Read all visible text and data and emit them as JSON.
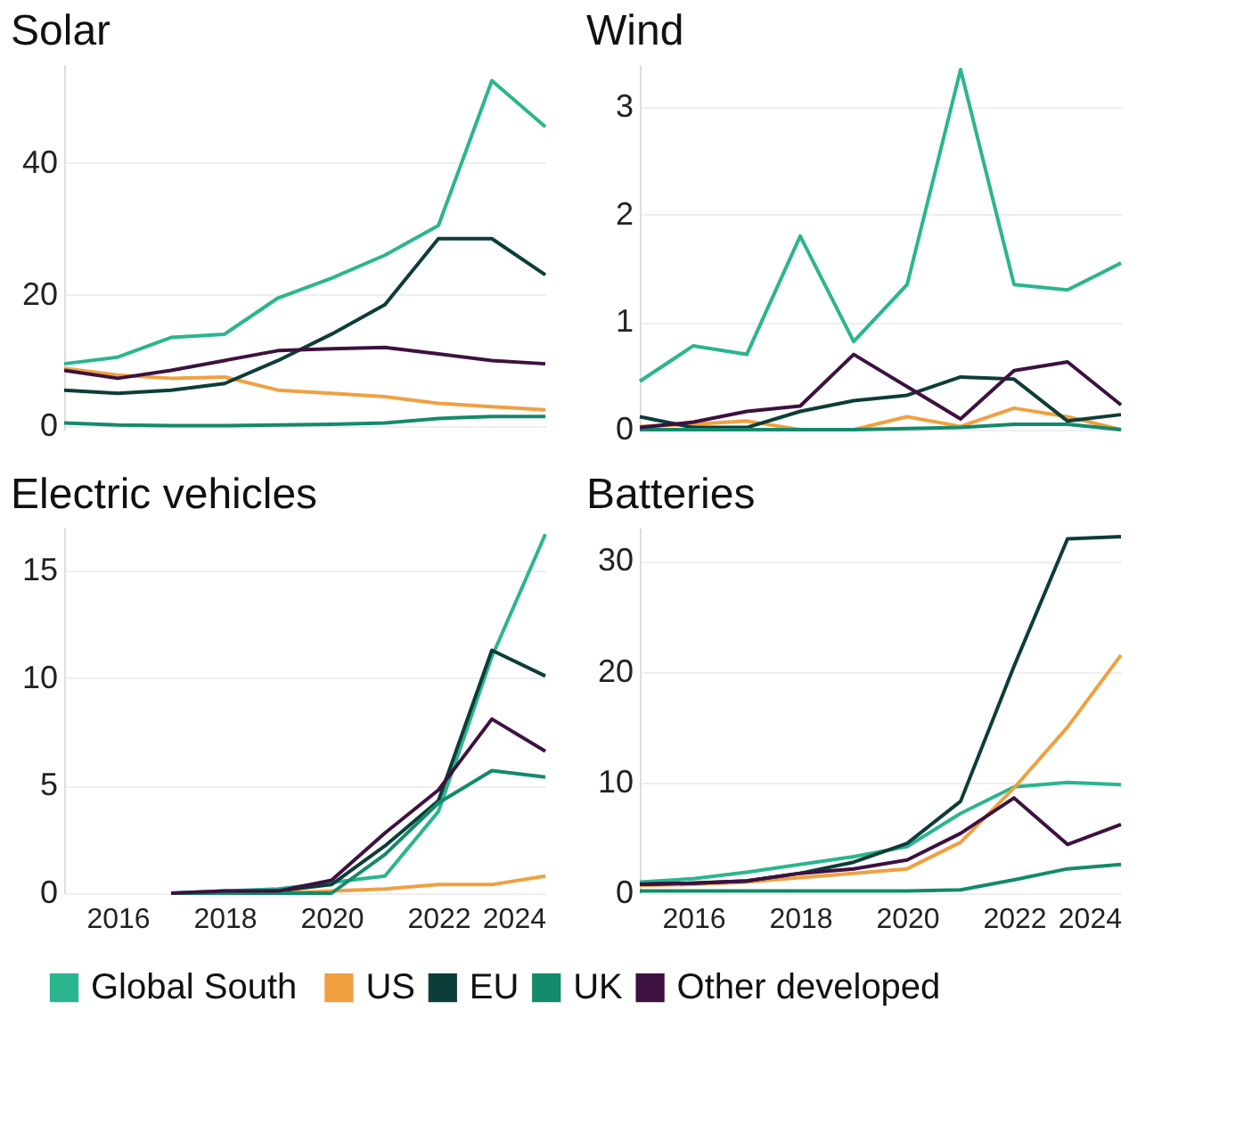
{
  "chart_data": [
    {
      "type": "line",
      "title": "Solar",
      "x": [
        2015,
        2016,
        2017,
        2018,
        2019,
        2020,
        2021,
        2022,
        2023,
        2024
      ],
      "xlim": [
        2015,
        2024
      ],
      "xticks": [
        2016,
        2018,
        2020,
        2022,
        2024
      ],
      "ylim": [
        -0.5,
        55
      ],
      "yticks": [
        0,
        20,
        40
      ],
      "grid": "y",
      "tick_labels": "y",
      "legend": "bottom",
      "series": [
        {
          "name": "Global South",
          "color": "#2bb58e",
          "values": [
            9.5,
            10.5,
            13.5,
            14,
            19.5,
            22.5,
            26,
            30.5,
            52.5,
            45.5
          ]
        },
        {
          "name": "US",
          "color": "#f0a040",
          "values": [
            8.8,
            7.8,
            7.3,
            7.5,
            5.5,
            5,
            4.5,
            3.5,
            3,
            2.5
          ]
        },
        {
          "name": "EU",
          "color": "#0d3d38",
          "values": [
            5.5,
            5,
            5.5,
            6.5,
            10,
            14,
            18.5,
            28.5,
            28.5,
            23
          ]
        },
        {
          "name": "UK",
          "color": "#138a6a",
          "values": [
            0.5,
            0.2,
            0.1,
            0.1,
            0.2,
            0.3,
            0.5,
            1.2,
            1.5,
            1.5
          ]
        },
        {
          "name": "Other developed",
          "color": "#3d1140",
          "values": [
            8.5,
            7.3,
            8.5,
            10,
            11.5,
            11.8,
            12,
            11,
            10,
            9.5
          ]
        }
      ]
    },
    {
      "type": "line",
      "title": "Wind",
      "x": [
        2015,
        2016,
        2017,
        2018,
        2019,
        2020,
        2021,
        2022,
        2023,
        2024
      ],
      "xlim": [
        2015,
        2024
      ],
      "xticks": [
        2016,
        2018,
        2020,
        2022,
        2024
      ],
      "ylim": [
        0,
        3.4
      ],
      "yticks": [
        0,
        1,
        2,
        3
      ],
      "grid": "y",
      "tick_labels": "y",
      "series": [
        {
          "name": "Global South",
          "color": "#2bb58e",
          "values": [
            0.45,
            0.78,
            0.7,
            1.8,
            0.82,
            1.35,
            3.35,
            1.35,
            1.3,
            1.55
          ]
        },
        {
          "name": "US",
          "color": "#f0a040",
          "values": [
            0.03,
            0.05,
            0.08,
            0,
            0,
            0.12,
            0.03,
            0.2,
            0.12,
            0
          ]
        },
        {
          "name": "EU",
          "color": "#0d3d38",
          "values": [
            0.12,
            0.02,
            0.02,
            0.17,
            0.27,
            0.32,
            0.49,
            0.47,
            0.08,
            0.14
          ]
        },
        {
          "name": "UK",
          "color": "#138a6a",
          "values": [
            0,
            0,
            0,
            0,
            0,
            0.01,
            0.02,
            0.05,
            0.05,
            0
          ]
        },
        {
          "name": "Other developed",
          "color": "#3d1140",
          "values": [
            0.02,
            0.07,
            0.17,
            0.22,
            0.7,
            0.4,
            0.1,
            0.55,
            0.63,
            0.23
          ]
        }
      ]
    },
    {
      "type": "line",
      "title": "Electric vehicles",
      "x": [
        2017,
        2018,
        2019,
        2020,
        2021,
        2022,
        2023,
        2024
      ],
      "xlim": [
        2015,
        2024
      ],
      "xticks": [
        2016,
        2018,
        2020,
        2022,
        2024
      ],
      "ylim": [
        0,
        17
      ],
      "yticks": [
        0,
        5,
        10,
        15
      ],
      "grid": "y",
      "series": [
        {
          "name": "Global South",
          "color": "#2bb58e",
          "values": [
            0,
            0.1,
            0.2,
            0.5,
            0.8,
            3.8,
            11,
            16.7
          ]
        },
        {
          "name": "US",
          "color": "#f0a040",
          "values": [
            0,
            0,
            0,
            0.1,
            0.2,
            0.4,
            0.4,
            0.8
          ]
        },
        {
          "name": "EU",
          "color": "#0d3d38",
          "values": [
            0,
            0,
            0.1,
            0.4,
            2.2,
            4.3,
            11.3,
            10.1
          ]
        },
        {
          "name": "UK",
          "color": "#138a6a",
          "values": [
            0,
            0,
            0,
            0,
            1.8,
            4.2,
            5.7,
            5.4
          ]
        },
        {
          "name": "Other developed",
          "color": "#3d1140",
          "values": [
            0,
            0.1,
            0.1,
            0.6,
            2.8,
            4.8,
            8.1,
            6.6
          ]
        }
      ]
    },
    {
      "type": "line",
      "title": "Batteries",
      "x": [
        2015,
        2016,
        2017,
        2018,
        2019,
        2020,
        2021,
        2022,
        2023,
        2024
      ],
      "xlim": [
        2015,
        2024
      ],
      "xticks": [
        2016,
        2018,
        2020,
        2022,
        2024
      ],
      "ylim": [
        0,
        33
      ],
      "yticks": [
        0,
        10,
        20,
        30
      ],
      "grid": "y",
      "series": [
        {
          "name": "Global South",
          "color": "#2bb58e",
          "values": [
            1,
            1.3,
            1.9,
            2.6,
            3.3,
            4.2,
            7.2,
            9.6,
            10,
            9.8
          ]
        },
        {
          "name": "US",
          "color": "#f0a040",
          "values": [
            0.7,
            0.8,
            1,
            1.4,
            1.8,
            2.2,
            4.6,
            9.5,
            15,
            21.5
          ]
        },
        {
          "name": "EU",
          "color": "#0d3d38",
          "values": [
            0.8,
            0.9,
            1.1,
            1.8,
            2.8,
            4.5,
            8.3,
            20.5,
            32,
            32.2
          ]
        },
        {
          "name": "UK",
          "color": "#138a6a",
          "values": [
            0.2,
            0.2,
            0.2,
            0.2,
            0.2,
            0.2,
            0.3,
            1.2,
            2.2,
            2.6
          ]
        },
        {
          "name": "Other developed",
          "color": "#3d1140",
          "values": [
            0.8,
            0.9,
            1.1,
            1.8,
            2.2,
            3,
            5.4,
            8.6,
            4.4,
            6.2
          ]
        }
      ]
    }
  ]
}
